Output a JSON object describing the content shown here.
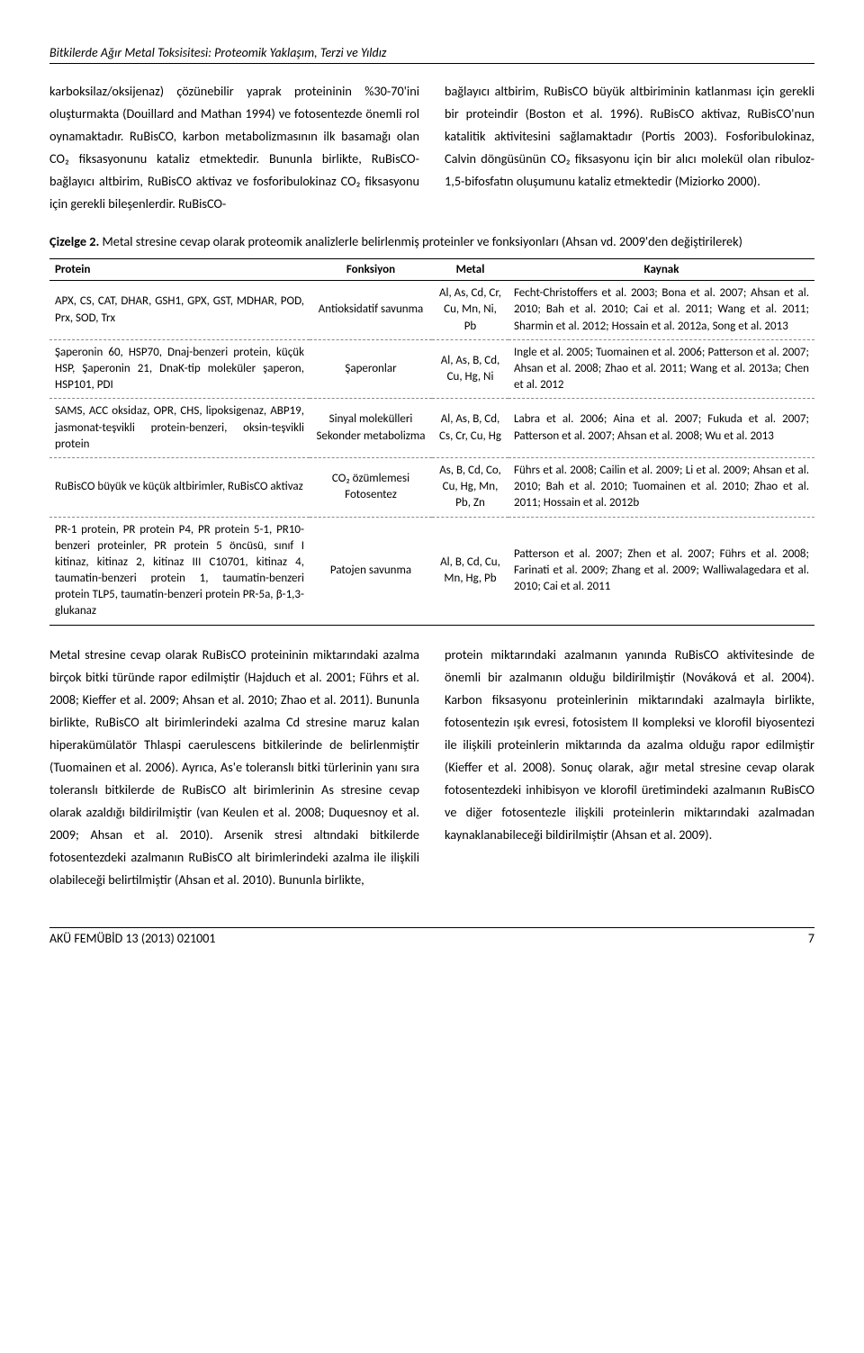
{
  "running_header": "Bitkilerde Ağır Metal Toksisitesi: Proteomik Yaklaşım, Terzi ve Yıldız",
  "body": {
    "col_left": "karboksilaz/oksijenaz) çözünebilir yaprak proteininin %30-70'ini oluşturmakta (Douillard and Mathan 1994) ve fotosentezde önemli rol oynamaktadır. RuBisCO, karbon metabolizmasının ilk basamağı olan CO₂ fiksasyonunu kataliz etmektedir. Bununla birlikte, RuBisCO-bağlayıcı altbirim, RuBisCO aktivaz ve fosforibulokinaz CO₂ fiksasyonu için gerekli bileşenlerdir. RuBisCO-",
    "col_right": "bağlayıcı altbirim, RuBisCO büyük altbiriminin katlanması için gerekli bir proteindir (Boston et al. 1996). RuBisCO aktivaz, RuBisCO'nun katalitik aktivitesini sağlamaktadır (Portis 2003). Fosforibulokinaz, Calvin döngüsünün CO₂ fiksasyonu için bir alıcı molekül olan ribuloz-1,5-bifosfatın oluşumunu kataliz etmektedir (Miziorko 2000)."
  },
  "table": {
    "caption_label": "Çizelge 2.",
    "caption_text": " Metal stresine cevap olarak proteomik analizlerle belirlenmiş proteinler ve fonksiyonları (Ahsan vd. 2009'den değiştirilerek)",
    "headers": [
      "Protein",
      "Fonksiyon",
      "Metal",
      "Kaynak"
    ],
    "rows": [
      {
        "protein": "APX, CS, CAT, DHAR, GSH1, GPX, GST, MDHAR, POD, Prx, SOD, Trx",
        "fonksiyon": "Antioksidatif savunma",
        "metal": "Al, As, Cd, Cr, Cu, Mn, Ni, Pb",
        "kaynak": "Fecht-Christoffers et al. 2003; Bona et al. 2007; Ahsan et al. 2010; Bah et al. 2010; Cai et al. 2011; Wang et al. 2011; Sharmin et al. 2012; Hossain et al. 2012a, Song et al. 2013"
      },
      {
        "protein": "Şaperonin 60, HSP70, Dnaj-benzeri protein, küçük HSP, Şaperonin 21, DnaK-tip moleküler şaperon, HSP101, PDI",
        "fonksiyon": "Şaperonlar",
        "metal": "Al, As, B, Cd, Cu, Hg, Ni",
        "kaynak": "Ingle et al. 2005; Tuomainen et al. 2006; Patterson et al. 2007; Ahsan et al. 2008; Zhao et al. 2011; Wang et al. 2013a; Chen et al. 2012"
      },
      {
        "protein": "SAMS, ACC oksidaz, OPR, CHS, lipoksigenaz, ABP19, jasmonat-teşvikli protein-benzeri, oksin-teşvikli protein",
        "fonksiyon": "Sinyal molekülleri Sekonder metabolizma",
        "metal": "Al, As, B, Cd, Cs, Cr, Cu, Hg",
        "kaynak": "Labra et al. 2006; Aina et al. 2007; Fukuda et al. 2007; Patterson et al. 2007; Ahsan et al. 2008; Wu et al. 2013"
      },
      {
        "protein": "RuBisCO büyük ve küçük altbirimler, RuBisCO aktivaz",
        "fonksiyon": "CO₂ özümlemesi Fotosentez",
        "metal": "As, B, Cd, Co, Cu, Hg, Mn, Pb, Zn",
        "kaynak": "Führs et al. 2008; Cailin et al. 2009; Li et al. 2009; Ahsan et al. 2010; Bah et al. 2010; Tuomainen et al. 2010; Zhao et al. 2011; Hossain et al. 2012b"
      },
      {
        "protein": "PR-1 protein, PR protein P4, PR protein 5-1, PR10-benzeri proteinler, PR protein 5 öncüsü, sınıf I kitinaz, kitinaz 2, kitinaz III C10701, kitinaz 4, taumatin-benzeri protein 1, taumatin-benzeri protein TLP5, taumatin-benzeri protein PR-5a, β-1,3-glukanaz",
        "fonksiyon": "Patojen savunma",
        "metal": "Al, B, Cd, Cu, Mn, Hg, Pb",
        "kaynak": "Patterson et al. 2007; Zhen et al. 2007; Führs et al. 2008; Farinati et al. 2009; Zhang et al. 2009; Walliwalagedara et al. 2010; Cai et al. 2011"
      }
    ]
  },
  "body2": {
    "col_left": "Metal stresine cevap olarak RuBisCO proteininin miktarındaki azalma birçok bitki türünde rapor edilmiştir (Hajduch et al. 2001; Führs et al. 2008; Kieffer et al. 2009; Ahsan et al. 2010; Zhao et al. 2011). Bununla birlikte, RuBisCO alt birimlerindeki azalma Cd stresine maruz kalan hiperakümülatör Thlaspi caerulescens bitkilerinde de belirlenmiştir (Tuomainen et al. 2006). Ayrıca, As'e toleranslı bitki türlerinin yanı sıra toleranslı bitkilerde de RuBisCO alt birimlerinin As stresine cevap olarak azaldığı bildirilmiştir (van Keulen et al. 2008; Duquesnoy et al. 2009; Ahsan et al. 2010). Arsenik stresi altındaki bitkilerde fotosentezdeki azalmanın RuBisCO alt birimlerindeki azalma ile ilişkili olabileceği belirtilmiştir (Ahsan et al. 2010). Bununla birlikte,",
    "col_right": "protein miktarındaki azalmanın yanında RuBisCO aktivitesinde de önemli bir azalmanın olduğu bildirilmiştir (Nováková et al. 2004). Karbon fiksasyonu proteinlerinin miktarındaki azalmayla birlikte, fotosentezin ışık evresi, fotosistem II kompleksi ve klorofil biyosentezi ile ilişkili proteinlerin miktarında da azalma olduğu rapor edilmiştir (Kieffer et al. 2008). Sonuç olarak, ağır metal stresine cevap olarak fotosentezdeki inhibisyon ve klorofil üretimindeki azalmanın RuBisCO ve diğer fotosentezle ilişkili proteinlerin miktarındaki azalmadan kaynaklanabileceği bildirilmiştir (Ahsan et al. 2009)."
  },
  "footer": {
    "journal": "AKÜ FEMÜBİD 13 (2013) 021001",
    "page": "7"
  }
}
